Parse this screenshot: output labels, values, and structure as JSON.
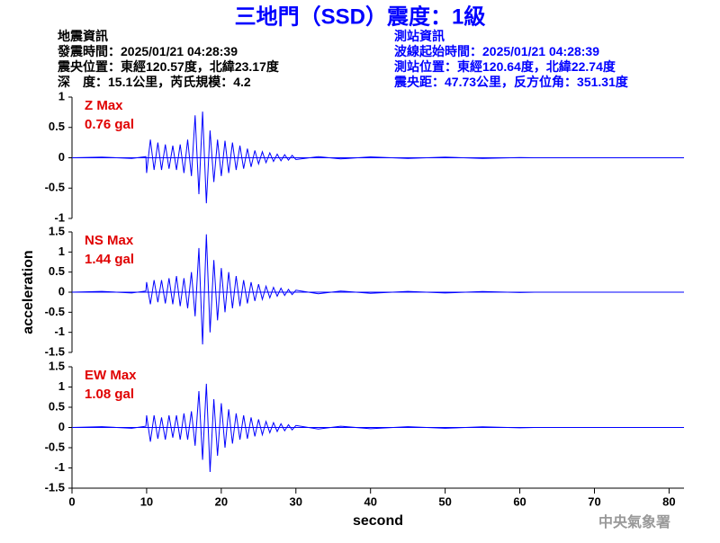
{
  "header": {
    "title": "三地門（SSD）震度：1級",
    "left": [
      "地震資訊",
      "發震時間：2025/01/21 04:28:39",
      "震央位置：東經120.57度，北緯23.17度",
      "深　度：15.1公里，芮氏規模：4.2"
    ],
    "right": [
      "測站資訊",
      "波線起始時間：2025/01/21 04:28:39",
      "測站位置：東經120.64度，北緯22.74度",
      "震央距：47.73公里，反方位角：351.31度"
    ],
    "footer": "中央氣象署"
  },
  "chart_data": [
    {
      "type": "line",
      "color": "#0000ff",
      "annotations": [
        "Z Max",
        "0.76 gal"
      ],
      "xlim": [
        0,
        82
      ],
      "ylim": [
        -1,
        1
      ],
      "yticks": [
        -1,
        -0.5,
        0,
        0.5,
        1
      ],
      "x": [
        0,
        4,
        8,
        9.9,
        10,
        10.5,
        11,
        11.5,
        12,
        12.5,
        13,
        13.5,
        14,
        14.5,
        15,
        15.5,
        16,
        16.5,
        17,
        17.5,
        18,
        18.5,
        19,
        19.5,
        20,
        20.5,
        21,
        21.5,
        22,
        22.5,
        23,
        23.5,
        24,
        24.5,
        25,
        25.5,
        26,
        26.5,
        27,
        27.5,
        28,
        28.5,
        29,
        29.5,
        30,
        33,
        36,
        40,
        45,
        50,
        55,
        60,
        62
      ],
      "values": [
        0,
        0.01,
        -0.01,
        0.02,
        -0.25,
        0.3,
        -0.2,
        0.25,
        -0.2,
        0.22,
        -0.18,
        0.2,
        -0.2,
        0.22,
        -0.25,
        0.3,
        -0.3,
        0.7,
        -0.6,
        0.76,
        -0.75,
        0.45,
        -0.4,
        0.3,
        -0.3,
        0.28,
        -0.25,
        0.25,
        -0.2,
        0.2,
        -0.18,
        0.15,
        -0.15,
        0.12,
        -0.1,
        0.1,
        -0.08,
        0.08,
        -0.06,
        0.06,
        -0.05,
        0.05,
        -0.04,
        0.04,
        -0.03,
        0.02,
        -0.02,
        0.015,
        -0.01,
        0.01,
        -0.01,
        0.005,
        0
      ]
    },
    {
      "type": "line",
      "color": "#0000ff",
      "annotations": [
        "NS Max",
        "1.44 gal"
      ],
      "ylabel": "acceleration",
      "xlim": [
        0,
        82
      ],
      "ylim": [
        -1.5,
        1.5
      ],
      "yticks": [
        -1.5,
        -1,
        -0.5,
        0,
        0.5,
        1,
        1.5
      ],
      "x": [
        0,
        4,
        8,
        9.9,
        10,
        10.5,
        11,
        11.5,
        12,
        12.5,
        13,
        13.5,
        14,
        14.5,
        15,
        15.5,
        16,
        16.5,
        17,
        17.5,
        18,
        18.5,
        19,
        19.5,
        20,
        20.5,
        21,
        21.5,
        22,
        22.5,
        23,
        23.5,
        24,
        24.5,
        25,
        25.5,
        26,
        26.5,
        27,
        27.5,
        28,
        28.5,
        29,
        29.5,
        30,
        33,
        36,
        40,
        45,
        50,
        55,
        60,
        62
      ],
      "values": [
        0,
        0.02,
        -0.02,
        0.03,
        0.25,
        -0.3,
        0.3,
        -0.25,
        0.3,
        -0.28,
        0.35,
        -0.3,
        0.4,
        -0.35,
        0.35,
        -0.4,
        0.5,
        -0.6,
        1.1,
        -1.3,
        1.44,
        -1.0,
        0.8,
        -0.7,
        0.6,
        -0.5,
        0.5,
        -0.4,
        0.4,
        -0.35,
        0.3,
        -0.28,
        0.25,
        -0.22,
        0.2,
        -0.18,
        0.15,
        -0.14,
        0.12,
        -0.1,
        0.1,
        -0.08,
        0.07,
        -0.06,
        0.05,
        -0.04,
        0.03,
        -0.03,
        0.02,
        -0.02,
        0.015,
        -0.01,
        0
      ]
    },
    {
      "type": "line",
      "color": "#0000ff",
      "annotations": [
        "EW Max",
        "1.08 gal"
      ],
      "xlabel": "second",
      "xlim": [
        0,
        82
      ],
      "ylim": [
        -1.5,
        1.5
      ],
      "yticks": [
        -1.5,
        -1,
        -0.5,
        0,
        0.5,
        1,
        1.5
      ],
      "xticks": [
        0,
        10,
        20,
        30,
        40,
        50,
        60,
        70,
        80
      ],
      "x": [
        0,
        4,
        8,
        9.9,
        10,
        10.5,
        11,
        11.5,
        12,
        12.5,
        13,
        13.5,
        14,
        14.5,
        15,
        15.5,
        16,
        16.5,
        17,
        17.5,
        18,
        18.5,
        19,
        19.5,
        20,
        20.5,
        21,
        21.5,
        22,
        22.5,
        23,
        23.5,
        24,
        24.5,
        25,
        25.5,
        26,
        26.5,
        27,
        27.5,
        28,
        28.5,
        29,
        29.5,
        30,
        33,
        36,
        40,
        45,
        50,
        55,
        60,
        62
      ],
      "values": [
        0,
        0.02,
        -0.02,
        0.03,
        0.3,
        -0.35,
        0.3,
        -0.28,
        0.25,
        -0.3,
        0.3,
        -0.25,
        0.3,
        -0.3,
        0.35,
        -0.3,
        0.4,
        -0.45,
        0.9,
        -0.8,
        1.08,
        -1.1,
        0.7,
        -0.7,
        0.6,
        -0.5,
        0.45,
        -0.4,
        0.35,
        -0.3,
        0.3,
        -0.28,
        0.25,
        -0.22,
        0.2,
        -0.18,
        0.15,
        -0.13,
        0.12,
        -0.1,
        0.09,
        -0.08,
        0.07,
        -0.06,
        0.05,
        -0.04,
        0.03,
        -0.03,
        0.02,
        -0.02,
        0.015,
        -0.01,
        0
      ]
    }
  ]
}
